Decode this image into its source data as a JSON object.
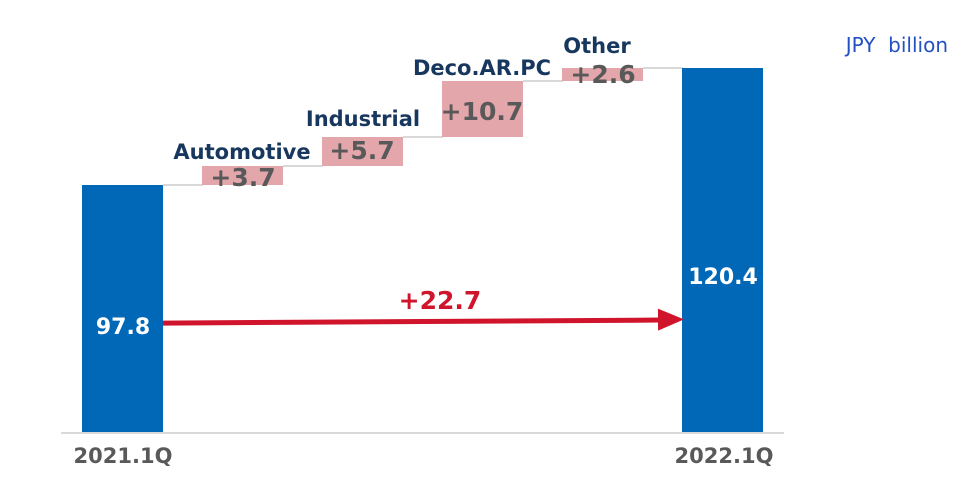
{
  "unit_label": "JPY  billion",
  "chart_data": {
    "type": "bar",
    "subtype": "waterfall",
    "title": "",
    "unit": "JPY billion",
    "categories": [
      "2021.1Q",
      "Automotive",
      "Industrial",
      "Deco.AR.PC",
      "Other",
      "2022.1Q"
    ],
    "start": {
      "label": "2021.1Q",
      "value": 97.8,
      "display": "97.8"
    },
    "deltas": [
      {
        "label": "Automotive",
        "value": 3.7,
        "display": "+3.7"
      },
      {
        "label": "Industrial",
        "value": 5.7,
        "display": "+5.7"
      },
      {
        "label": "Deco.AR.PC",
        "value": 10.7,
        "display": "+10.7"
      },
      {
        "label": "Other",
        "value": 2.6,
        "display": "+2.6"
      }
    ],
    "end": {
      "label": "2022.1Q",
      "value": 120.4,
      "display": "120.4"
    },
    "total_change": {
      "value": 22.7,
      "display": "+22.7"
    },
    "axis": {
      "ymin": 50,
      "ymax": 125,
      "gridlines": false,
      "legend": "none",
      "y_axis_visible": false
    },
    "colors": {
      "total_bar": "#0068b6",
      "delta_bar": "#e2a6ab",
      "delta_value_text": "#595959",
      "category_label_text": "#17375e",
      "axis_label_text": "#595959",
      "bar_value_text": "#ffffff",
      "arrow": "#d0142c",
      "total_change_text": "#d0142c",
      "connector_line": "#d9d9d9",
      "axis_line": "#d9d9d9",
      "unit_text": "#2350c4"
    }
  }
}
